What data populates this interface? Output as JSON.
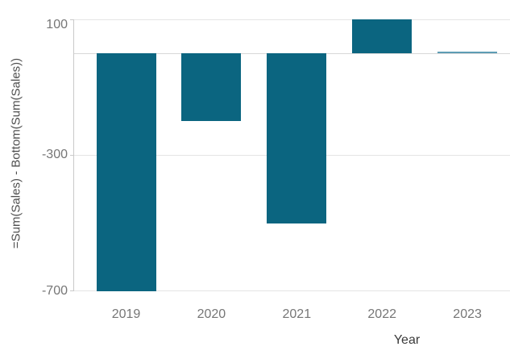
{
  "chart_data": {
    "type": "bar",
    "title": "",
    "xlabel": "Year",
    "ylabel": "=Sum(Sales) - Bottom(Sum(Sales))",
    "categories": [
      "2019",
      "2020",
      "2021",
      "2022",
      "2023"
    ],
    "values": [
      -700,
      -200,
      -500,
      100,
      0
    ],
    "yticks": [
      100,
      -300,
      -700
    ],
    "ylim": [
      -760,
      110
    ],
    "grid": true,
    "zero_line": true,
    "legend": "none"
  },
  "colors": {
    "bar": "#0b6580",
    "bar_thin": "#5e9cb4",
    "gridline": "#e4e4e4",
    "zero_line": "#d8d8d8",
    "axis_line": "#c9c9c9",
    "tick_label": "#767676",
    "x_axis_title": "#3a3a3a",
    "y_axis_title": "#4e4e4e"
  }
}
